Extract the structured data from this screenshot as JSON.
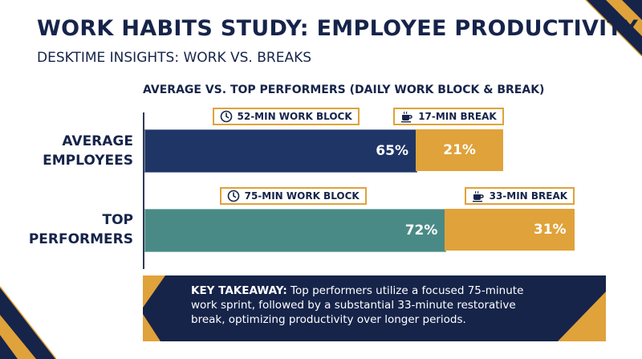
{
  "header": {
    "title": "WORK HABITS STUDY: EMPLOYEE PRODUCTIVITY",
    "subtitle": "DESKTIME INSIGHTS: WORK VS. BREAKS"
  },
  "colors": {
    "navy": "#1f3566",
    "teal": "#4a8a86",
    "gold": "#e0a23a",
    "dark": "#16244a"
  },
  "chart_data": {
    "type": "bar",
    "orientation": "horizontal",
    "stacked": true,
    "title": "AVERAGE VS. TOP PERFORMERS (DAILY WORK BLOCK & BREAK)",
    "categories": [
      "AVERAGE EMPLOYEES",
      "TOP PERFORMERS"
    ],
    "categories_display": [
      [
        "AVERAGE",
        "EMPLOYEES"
      ],
      [
        "TOP",
        "PERFORMERS"
      ]
    ],
    "series": [
      {
        "values": [
          65,
          72
        ],
        "labels": [
          "65%",
          "72%"
        ],
        "colors": [
          "#1f3566",
          "#4a8a86"
        ]
      },
      {
        "values": [
          21,
          31
        ],
        "labels": [
          "21%",
          "31%"
        ],
        "colors": [
          "#e0a23a",
          "#e0a23a"
        ]
      }
    ],
    "annotations": [
      {
        "category": "AVERAGE EMPLOYEES",
        "segment": 0,
        "icon": "clock-icon",
        "text": "52-MIN WORK BLOCK"
      },
      {
        "category": "AVERAGE EMPLOYEES",
        "segment": 1,
        "icon": "coffee-cup-icon",
        "text": "17-MIN BREAK"
      },
      {
        "category": "TOP PERFORMERS",
        "segment": 0,
        "icon": "clock-icon",
        "text": "75-MIN WORK BLOCK"
      },
      {
        "category": "TOP PERFORMERS",
        "segment": 1,
        "icon": "coffee-cup-icon",
        "text": "33-MIN BREAK"
      }
    ],
    "grid": false,
    "legend": "none"
  },
  "takeaway": {
    "label": "KEY TAKEAWAY:",
    "text": " Top performers utilize a focused 75-minute work sprint, followed by a substantial 33-minute restorative break, optimizing productivity over longer periods."
  }
}
